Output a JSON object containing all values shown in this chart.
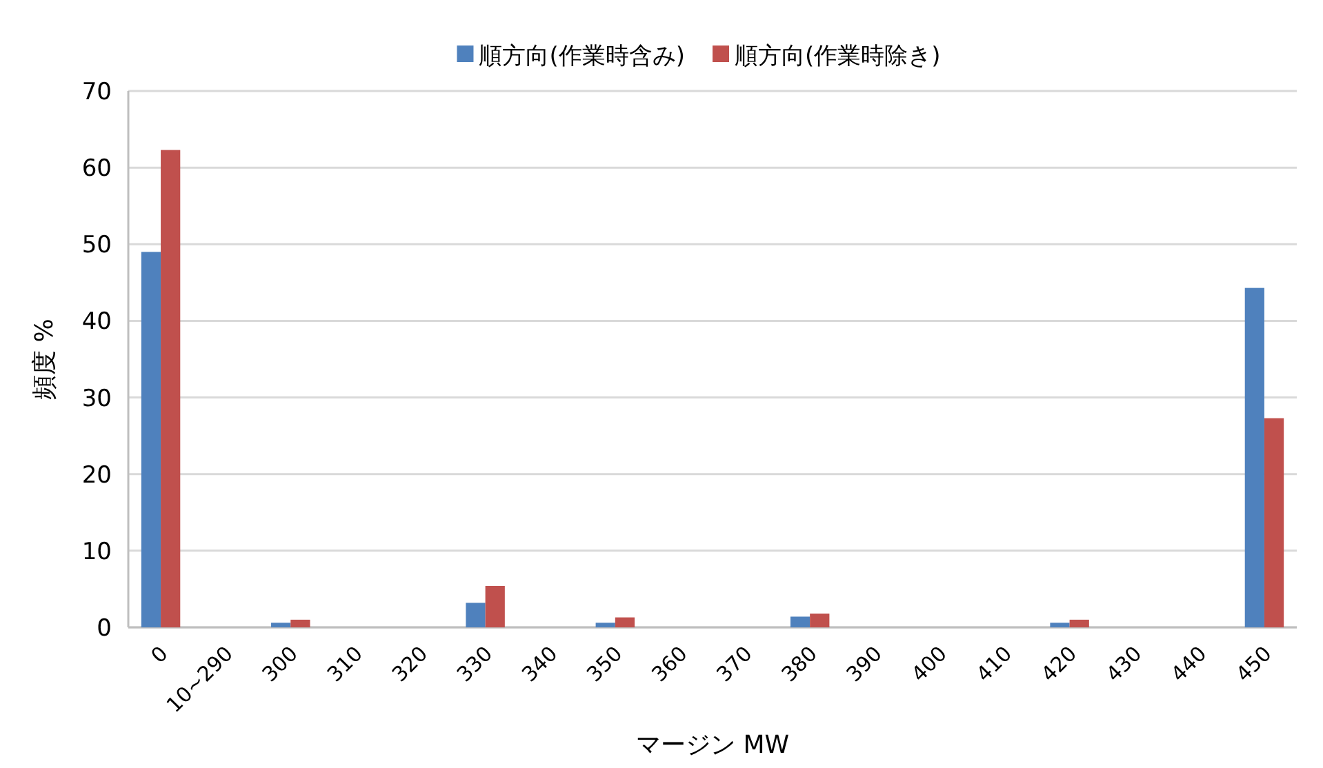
{
  "chart_data": {
    "type": "bar",
    "xlabel": "マージン MW",
    "ylabel": "頻度 %",
    "categories": [
      "0",
      "10~290",
      "300",
      "310",
      "320",
      "330",
      "340",
      "350",
      "360",
      "370",
      "380",
      "390",
      "400",
      "410",
      "420",
      "430",
      "440",
      "450"
    ],
    "series": [
      {
        "name": "順方向(作業時含み)",
        "color": "#4f81bd",
        "values": [
          49,
          0,
          0.6,
          0,
          0,
          3.2,
          0,
          0.6,
          0,
          0,
          1.4,
          0,
          0,
          0,
          0.6,
          0,
          0,
          44.3
        ]
      },
      {
        "name": "順方向(作業時除き)",
        "color": "#c0504d",
        "values": [
          62.3,
          0,
          1.0,
          0,
          0,
          5.4,
          0,
          1.3,
          0,
          0,
          1.8,
          0,
          0,
          0,
          1.0,
          0,
          0,
          27.3
        ]
      }
    ],
    "ylim": [
      0,
      70
    ],
    "yticks": [
      0,
      10,
      20,
      30,
      40,
      50,
      60,
      70
    ],
    "grid": "y",
    "legend": "top"
  }
}
